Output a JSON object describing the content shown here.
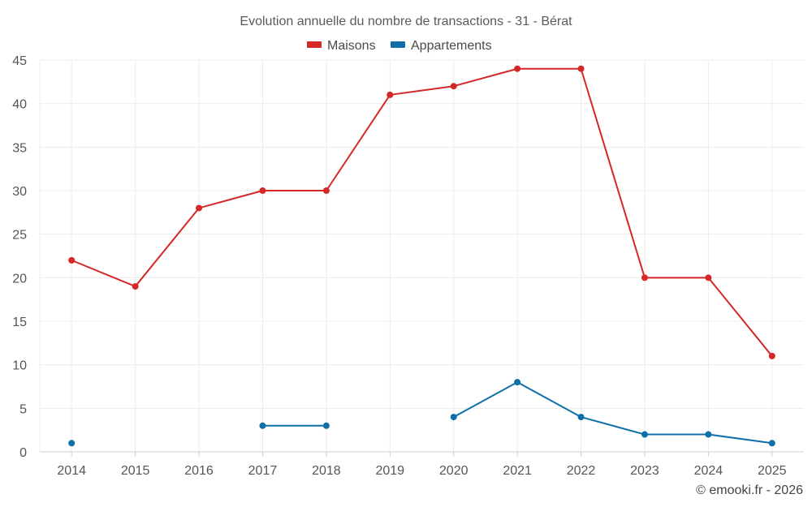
{
  "chart_data": {
    "type": "line",
    "title": "Evolution annuelle du nombre de transactions - 31 - Bérat",
    "categories": [
      "2014",
      "2015",
      "2016",
      "2017",
      "2018",
      "2019",
      "2020",
      "2021",
      "2022",
      "2023",
      "2024",
      "2025"
    ],
    "xlabel": "",
    "ylabel": "",
    "ylim": [
      0,
      45
    ],
    "yticks": [
      0,
      5,
      10,
      15,
      20,
      25,
      30,
      35,
      40,
      45
    ],
    "grid": true,
    "legend_position": "top-center",
    "series": [
      {
        "name": "Maisons",
        "color": "#d62728",
        "values": [
          22,
          19,
          28,
          30,
          30,
          41,
          42,
          44,
          44,
          20,
          20,
          11
        ]
      },
      {
        "name": "Appartements",
        "color": "#0f6fa8",
        "values": [
          1,
          null,
          null,
          3,
          3,
          null,
          4,
          8,
          4,
          2,
          2,
          1
        ]
      }
    ]
  },
  "credit": "© emooki.fr - 2026"
}
